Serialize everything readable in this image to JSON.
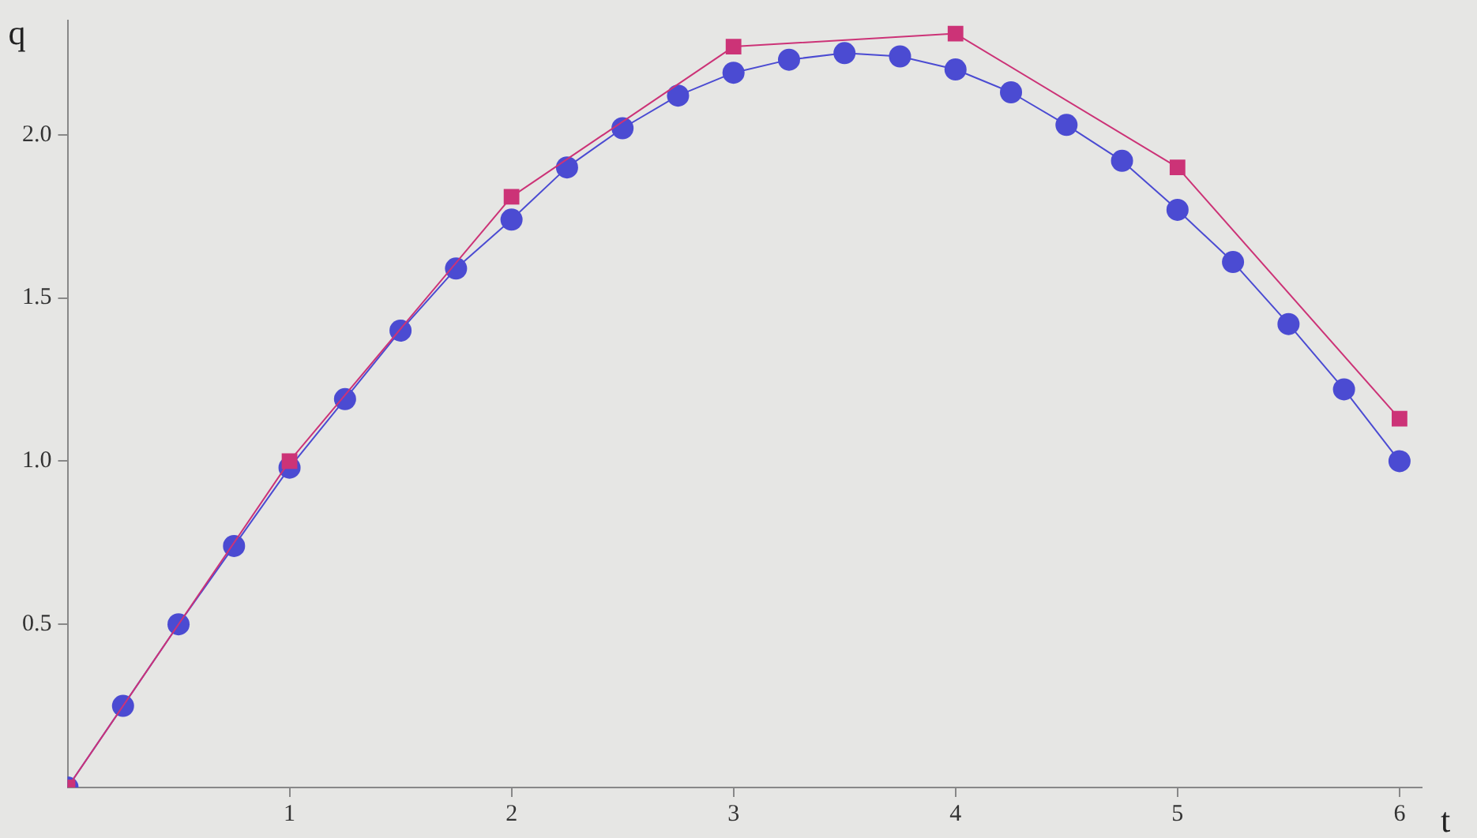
{
  "chart_data": {
    "type": "line",
    "xlabel": "t",
    "ylabel": "q",
    "xlim": [
      0,
      6.1
    ],
    "xticks": [
      1,
      2,
      3,
      4,
      5,
      6
    ],
    "ylim": [
      0,
      2.35
    ],
    "yticks": [
      {
        "value": 0.5,
        "label": "0.5"
      },
      {
        "value": 1,
        "label": "1.0"
      },
      {
        "value": 1.5,
        "label": "1.5"
      },
      {
        "value": 2,
        "label": "2.0"
      }
    ],
    "grid": false,
    "legend": false,
    "series": [
      {
        "color": "#4b4bd2",
        "marker": "circle",
        "x": [
          0,
          0.25,
          0.5,
          0.75,
          1,
          1.25,
          1.5,
          1.75,
          2,
          2.25,
          2.5,
          2.75,
          3,
          3.25,
          3.5,
          3.75,
          4,
          4.25,
          4.5,
          4.75,
          5,
          5.25,
          5.5,
          5.75,
          6
        ],
        "values": [
          0,
          0.25,
          0.5,
          0.74,
          0.98,
          1.19,
          1.4,
          1.59,
          1.74,
          1.9,
          2.02,
          2.12,
          2.19,
          2.23,
          2.25,
          2.24,
          2.2,
          2.13,
          2.03,
          1.92,
          1.77,
          1.61,
          1.42,
          1.22,
          1.0
        ]
      },
      {
        "color": "#cc3377",
        "marker": "square",
        "x": [
          0,
          1,
          2,
          3,
          4,
          5,
          6
        ],
        "values": [
          0,
          1.0,
          1.81,
          2.27,
          2.31,
          1.9,
          1.13
        ]
      }
    ]
  }
}
